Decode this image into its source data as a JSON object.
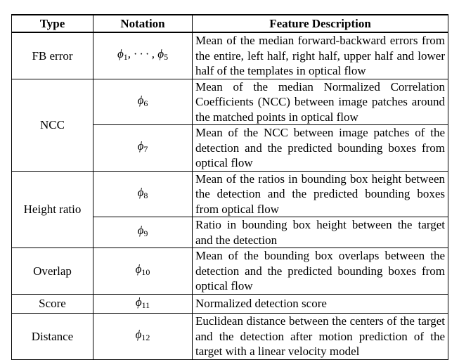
{
  "headers": [
    "Type",
    "Notation",
    "Feature Description"
  ],
  "rows": [
    {
      "type": "FB error",
      "notation": "ϕ1, · · · , ϕ5",
      "description": "Mean of the median forward-backward errors from the entire, left half, right half, upper half and lower half of the templates in optical flow"
    },
    {
      "type": "NCC",
      "notation": "ϕ6",
      "description": "Mean of the median Normalized Correlation Coefficients (NCC) between image patches around the matched points in optical flow"
    },
    {
      "type": "",
      "notation": "ϕ7",
      "description": "Mean of the NCC between image patches of the detection and the predicted bounding boxes from optical flow"
    },
    {
      "type": "Height ratio",
      "notation": "ϕ8",
      "description": "Mean of the ratios in bounding box height between the detection and the predicted bounding boxes from optical flow"
    },
    {
      "type": "",
      "notation": "ϕ9",
      "description": "Ratio in bounding box height between the target and the detection"
    },
    {
      "type": "Overlap",
      "notation": "ϕ10",
      "description": "Mean of the bounding box overlaps between the detection and the predicted bounding boxes from optical flow"
    },
    {
      "type": "Score",
      "notation": "ϕ11",
      "description": "Normalized detection score"
    },
    {
      "type": "Distance",
      "notation": "ϕ12",
      "description": "Euclidean distance between the centers of the target and the detection after motion prediction of the target with a linear velocity model"
    }
  ]
}
